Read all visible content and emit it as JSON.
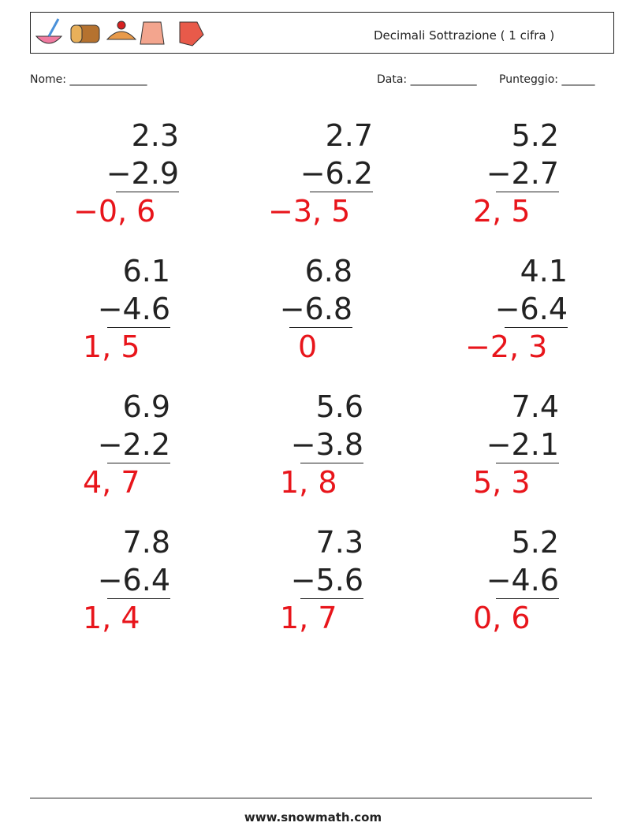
{
  "header": {
    "title": "Decimali Sottrazione ( 1 cifra )"
  },
  "fields": {
    "name": "Nome: ______________",
    "date": "Data: ____________",
    "score": "Punteggio: ______"
  },
  "problems": [
    {
      "top": "2.3",
      "bottom": "−2.9",
      "answer": "−0, 6"
    },
    {
      "top": "2.7",
      "bottom": "−6.2",
      "answer": "−3, 5"
    },
    {
      "top": "5.2",
      "bottom": "−2.7",
      "answer": "2, 5"
    },
    {
      "top": "6.1",
      "bottom": "−4.6",
      "answer": "1, 5"
    },
    {
      "top": "6.8",
      "bottom": "−6.8",
      "answer": "0"
    },
    {
      "top": "4.1",
      "bottom": "−6.4",
      "answer": "−2, 3"
    },
    {
      "top": "6.9",
      "bottom": "−2.2",
      "answer": "4, 7"
    },
    {
      "top": "5.6",
      "bottom": "−3.8",
      "answer": "1, 8"
    },
    {
      "top": "7.4",
      "bottom": "−2.1",
      "answer": "5, 3"
    },
    {
      "top": "7.8",
      "bottom": "−6.4",
      "answer": "1, 4"
    },
    {
      "top": "7.3",
      "bottom": "−5.6",
      "answer": "1, 7"
    },
    {
      "top": "5.2",
      "bottom": "−4.6",
      "answer": "0, 6"
    }
  ],
  "footer": {
    "site": "www.snowmath.com"
  }
}
